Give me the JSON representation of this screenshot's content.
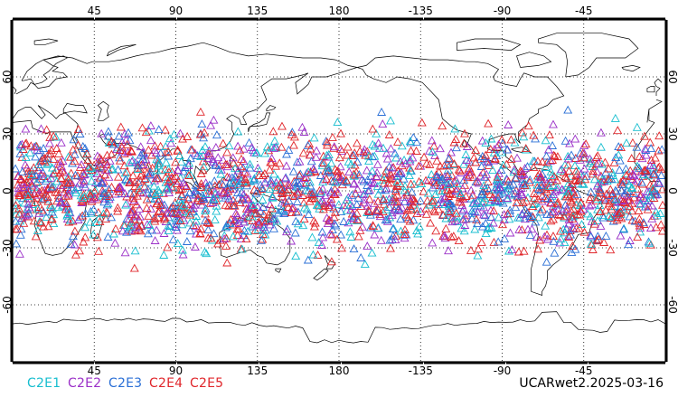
{
  "title": "UCARwet2.2025-03-16",
  "legend": [
    {
      "label": "C2E1",
      "color": "#17becf"
    },
    {
      "label": "C2E2",
      "color": "#9b30c8"
    },
    {
      "label": "C2E3",
      "color": "#2a6fd6"
    },
    {
      "label": "C2E4",
      "color": "#e0262b"
    },
    {
      "label": "C2E5",
      "color": "#e0262b"
    }
  ],
  "lon_labels": [
    "45",
    "90",
    "135",
    "180",
    "-135",
    "-90",
    "-45"
  ],
  "lat_labels": [
    "60",
    "30",
    "0",
    "-30",
    "-60"
  ],
  "map": {
    "projection": "cylindrical equidistant",
    "lon_range": [
      0,
      360
    ],
    "lat_range": [
      -90,
      90
    ],
    "lon_ticks": [
      45,
      90,
      135,
      180,
      225,
      270,
      315
    ],
    "lat_ticks": [
      60,
      30,
      0,
      -30,
      -60
    ],
    "grid": "dotted",
    "marker": "open-triangle",
    "observation_band_lat": [
      -45,
      45
    ]
  }
}
